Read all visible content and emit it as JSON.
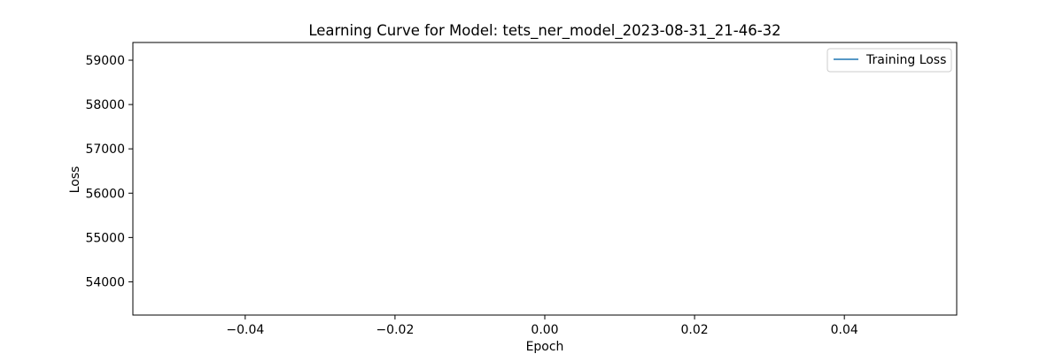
{
  "chart_data": {
    "type": "line",
    "title": "Learning Curve for Model: tets_ner_model_2023-08-31_21-46-32",
    "xlabel": "Epoch",
    "ylabel": "Loss",
    "xlim": [
      -0.055,
      0.055
    ],
    "ylim": [
      53250,
      59400
    ],
    "xticks": [
      -0.04,
      -0.02,
      0.0,
      0.02,
      0.04
    ],
    "xtick_labels": [
      "−0.04",
      "−0.02",
      "0.00",
      "0.02",
      "0.04"
    ],
    "yticks": [
      54000,
      55000,
      56000,
      57000,
      58000,
      59000
    ],
    "ytick_labels": [
      "54000",
      "55000",
      "56000",
      "57000",
      "58000",
      "59000"
    ],
    "grid": false,
    "legend_position": "top-right",
    "series": [
      {
        "name": "Training Loss",
        "color": "#1f77b4",
        "x": [],
        "y": []
      }
    ]
  }
}
